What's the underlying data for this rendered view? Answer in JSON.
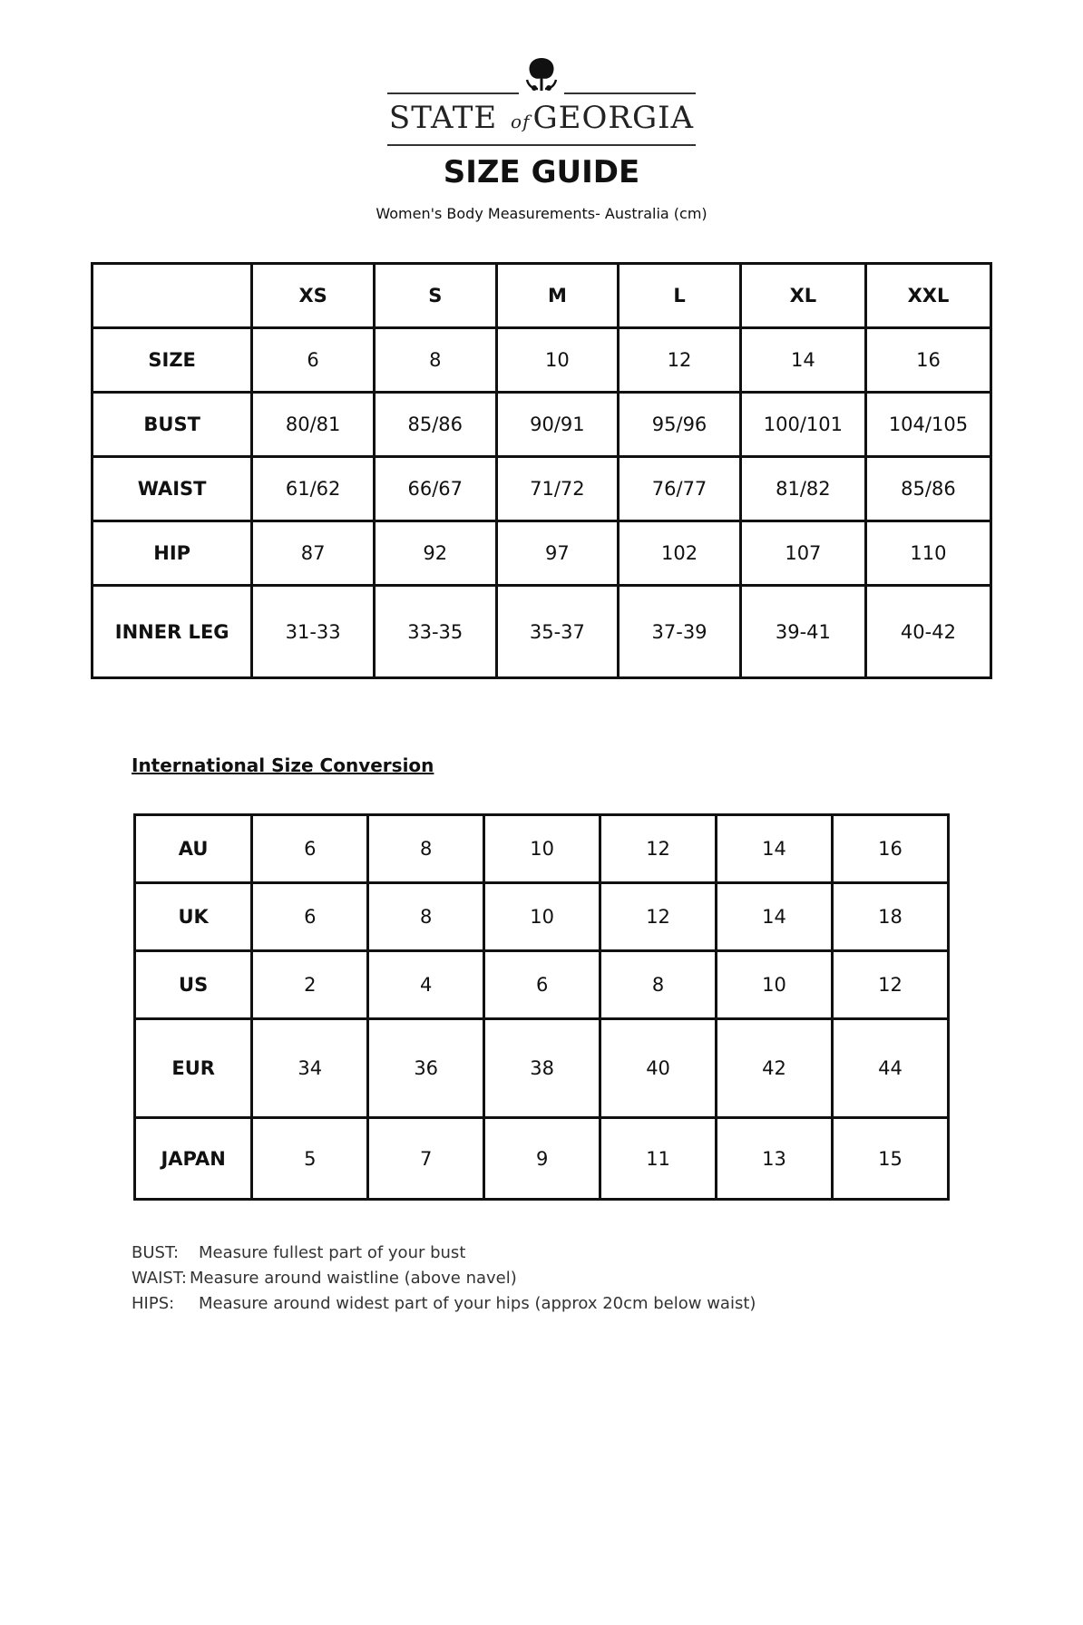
{
  "logo": {
    "brand_left": "STATE",
    "brand_of": "of",
    "brand_right": "GEORGIA",
    "icon": "tree-icon"
  },
  "title": "SIZE GUIDE",
  "subtitle": "Women's Body Measurements- Australia (cm)",
  "body_table": {
    "headers": [
      "",
      "XS",
      "S",
      "M",
      "L",
      "XL",
      "XXL"
    ],
    "rows": [
      {
        "label": "SIZE",
        "values": [
          "6",
          "8",
          "10",
          "12",
          "14",
          "16"
        ]
      },
      {
        "label": "BUST",
        "values": [
          "80/81",
          "85/86",
          "90/91",
          "95/96",
          "100/101",
          "104/105"
        ]
      },
      {
        "label": "WAIST",
        "values": [
          "61/62",
          "66/67",
          "71/72",
          "76/77",
          "81/82",
          "85/86"
        ]
      },
      {
        "label": "HIP",
        "values": [
          "87",
          "92",
          "97",
          "102",
          "107",
          "110"
        ]
      },
      {
        "label": "INNER LEG",
        "values": [
          "31-33",
          "33-35",
          "35-37",
          "37-39",
          "39-41",
          "40-42"
        ]
      }
    ]
  },
  "conversion_heading": "International Size Conversion",
  "conversion_table": {
    "rows": [
      {
        "label": "AU",
        "values": [
          "6",
          "8",
          "10",
          "12",
          "14",
          "16"
        ]
      },
      {
        "label": "UK",
        "values": [
          "6",
          "8",
          "10",
          "12",
          "14",
          "18"
        ]
      },
      {
        "label": "US",
        "values": [
          "2",
          "4",
          "6",
          "8",
          "10",
          "12"
        ]
      },
      {
        "label": "EUR",
        "values": [
          "34",
          "36",
          "38",
          "40",
          "42",
          "44"
        ]
      },
      {
        "label": "JAPAN",
        "values": [
          "5",
          "7",
          "9",
          "11",
          "13",
          "15"
        ]
      }
    ]
  },
  "notes": [
    {
      "key": "BUST:",
      "text": "Measure fullest part of your bust"
    },
    {
      "key": "WAIST:",
      "text": "Measure around waistline (above navel)"
    },
    {
      "key": "HIPS:",
      "text": "Measure around widest part of your hips (approx 20cm below waist)"
    }
  ]
}
